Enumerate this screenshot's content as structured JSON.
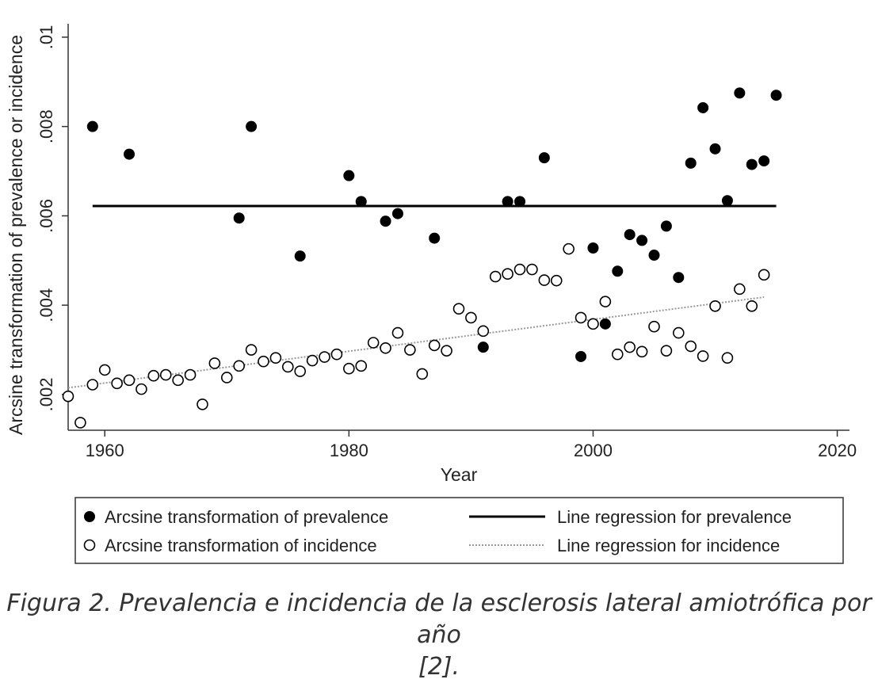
{
  "chart_data": {
    "type": "scatter",
    "xlabel": "Year",
    "ylabel": "Arcsine transformation of prevalence or incidence",
    "xlim": [
      1957,
      2021
    ],
    "ylim": [
      0.0012,
      0.0103
    ],
    "xticks": [
      1960,
      1980,
      2000,
      2020
    ],
    "xtick_labels": [
      "1960",
      "1980",
      "2000",
      "2020"
    ],
    "yticks": [
      0.002,
      0.004,
      0.006,
      0.008,
      0.01
    ],
    "ytick_labels": [
      ".002",
      ".004",
      ".006",
      ".008",
      ".01"
    ],
    "grid": false,
    "legend": {
      "placement": "bottom",
      "entries": [
        "Arcsine transformation of prevalence",
        "Line regression for prevalence",
        "Arcsine transformation of incidence",
        "Line regression for incidence"
      ]
    },
    "series": [
      {
        "name": "Arcsine transformation of prevalence",
        "kind": "scatter",
        "marker": "filled-circle",
        "color": "#000000",
        "points": [
          [
            1959,
            0.008
          ],
          [
            1962,
            0.00738
          ],
          [
            1971,
            0.00595
          ],
          [
            1972,
            0.008
          ],
          [
            1976,
            0.0051
          ],
          [
            1980,
            0.0069
          ],
          [
            1981,
            0.00632
          ],
          [
            1983,
            0.00588
          ],
          [
            1984,
            0.00605
          ],
          [
            1987,
            0.0055
          ],
          [
            1991,
            0.00306
          ],
          [
            1993,
            0.00632
          ],
          [
            1994,
            0.00632
          ],
          [
            1996,
            0.0073
          ],
          [
            1999,
            0.00285
          ],
          [
            2000,
            0.00528
          ],
          [
            2001,
            0.00358
          ],
          [
            2002,
            0.00476
          ],
          [
            2003,
            0.00558
          ],
          [
            2004,
            0.00545
          ],
          [
            2005,
            0.00512
          ],
          [
            2006,
            0.00577
          ],
          [
            2007,
            0.00462
          ],
          [
            2008,
            0.00718
          ],
          [
            2009,
            0.00842
          ],
          [
            2010,
            0.0075
          ],
          [
            2011,
            0.00634
          ],
          [
            2012,
            0.00875
          ],
          [
            2013,
            0.00715
          ],
          [
            2014,
            0.00723
          ],
          [
            2015,
            0.0087
          ]
        ]
      },
      {
        "name": "Arcsine transformation of incidence",
        "kind": "scatter",
        "marker": "hollow-circle",
        "color": "#000000",
        "points": [
          [
            1957,
            0.00196
          ],
          [
            1958,
            0.00137
          ],
          [
            1959,
            0.00222
          ],
          [
            1960,
            0.00255
          ],
          [
            1961,
            0.00225
          ],
          [
            1962,
            0.00232
          ],
          [
            1963,
            0.00212
          ],
          [
            1964,
            0.00242
          ],
          [
            1965,
            0.00244
          ],
          [
            1966,
            0.00232
          ],
          [
            1967,
            0.00244
          ],
          [
            1968,
            0.00178
          ],
          [
            1969,
            0.0027
          ],
          [
            1970,
            0.00238
          ],
          [
            1971,
            0.00264
          ],
          [
            1972,
            0.003
          ],
          [
            1973,
            0.00274
          ],
          [
            1974,
            0.00282
          ],
          [
            1975,
            0.00262
          ],
          [
            1976,
            0.00252
          ],
          [
            1977,
            0.00276
          ],
          [
            1978,
            0.00284
          ],
          [
            1979,
            0.0029
          ],
          [
            1980,
            0.00258
          ],
          [
            1981,
            0.00264
          ],
          [
            1982,
            0.00316
          ],
          [
            1983,
            0.00304
          ],
          [
            1984,
            0.00338
          ],
          [
            1985,
            0.003
          ],
          [
            1986,
            0.00246
          ],
          [
            1987,
            0.0031
          ],
          [
            1988,
            0.00298
          ],
          [
            1989,
            0.00392
          ],
          [
            1990,
            0.00372
          ],
          [
            1991,
            0.00342
          ],
          [
            1992,
            0.00464
          ],
          [
            1993,
            0.0047
          ],
          [
            1994,
            0.0048
          ],
          [
            1995,
            0.0048
          ],
          [
            1996,
            0.00456
          ],
          [
            1997,
            0.00455
          ],
          [
            1998,
            0.00526
          ],
          [
            1999,
            0.00372
          ],
          [
            2000,
            0.00358
          ],
          [
            2001,
            0.00408
          ],
          [
            2002,
            0.0029
          ],
          [
            2003,
            0.00306
          ],
          [
            2004,
            0.00296
          ],
          [
            2005,
            0.00352
          ],
          [
            2006,
            0.00298
          ],
          [
            2007,
            0.00338
          ],
          [
            2008,
            0.00308
          ],
          [
            2009,
            0.00286
          ],
          [
            2010,
            0.00398
          ],
          [
            2011,
            0.00282
          ],
          [
            2012,
            0.00436
          ],
          [
            2013,
            0.00398
          ],
          [
            2014,
            0.00468
          ]
        ]
      },
      {
        "name": "Line regression for prevalence",
        "kind": "line",
        "style": "solid",
        "color": "#000000",
        "points": [
          [
            1959,
            0.00622
          ],
          [
            2015,
            0.00622
          ]
        ]
      },
      {
        "name": "Line regression for incidence",
        "kind": "line",
        "style": "dotted",
        "color": "#999999",
        "points": [
          [
            1957,
            0.00215
          ],
          [
            2014,
            0.00418
          ]
        ]
      }
    ]
  },
  "caption": {
    "line1": "Figura 2. Prevalencia e incidencia de la esclerosis lateral amiotrófica por año",
    "line2": "[2]."
  }
}
